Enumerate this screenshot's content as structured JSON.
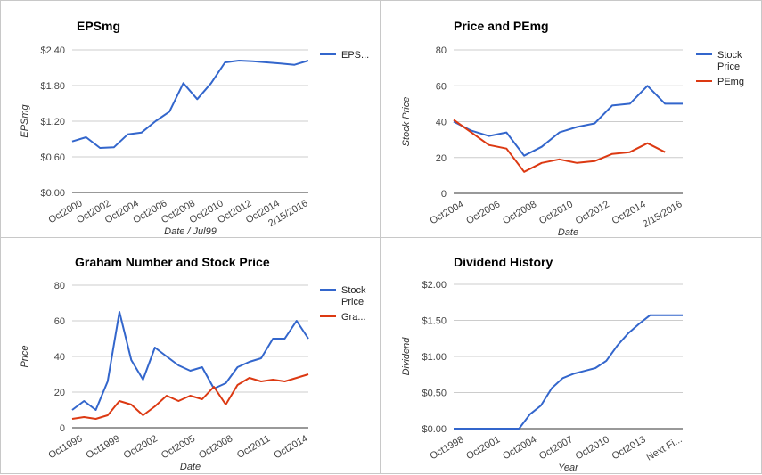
{
  "chart_data": [
    {
      "type": "line",
      "title": "EPSmg",
      "xlabel": "Date / Jul99",
      "ylabel": "EPSmg",
      "yticks": [
        "$0.00",
        "$0.60",
        "$1.20",
        "$1.80",
        "$2.40"
      ],
      "ylim": [
        0,
        2.4
      ],
      "xticks": [
        "Oct2000",
        "Oct2002",
        "Oct2004",
        "Oct2006",
        "Oct2008",
        "Oct2010",
        "Oct2012",
        "Oct2014",
        "2/15/2016"
      ],
      "legend": "right",
      "series": [
        {
          "name": "EPS...",
          "color": "#3366cc",
          "x": [
            0,
            1,
            2,
            3,
            4,
            5,
            6,
            7,
            8,
            9,
            10,
            11,
            12,
            13,
            14,
            15,
            16,
            17
          ],
          "values": [
            0.86,
            0.93,
            0.75,
            0.76,
            0.98,
            1.01,
            1.2,
            1.36,
            1.84,
            1.57,
            1.84,
            2.19,
            2.22,
            2.21,
            2.19,
            2.17,
            2.15,
            2.22
          ]
        }
      ]
    },
    {
      "type": "line",
      "title": "Price and PEmg",
      "xlabel": "Date",
      "ylabel": "Stock Price",
      "yticks": [
        "0",
        "20",
        "40",
        "60",
        "80"
      ],
      "ylim": [
        0,
        80
      ],
      "xticks": [
        "Oct2004",
        "Oct2006",
        "Oct2008",
        "Oct2010",
        "Oct2012",
        "Oct2014",
        "2/15/2016"
      ],
      "legend": "right",
      "series": [
        {
          "name": "Stock Price",
          "color": "#3366cc",
          "x": [
            0,
            1,
            2,
            3,
            4,
            5,
            6,
            7,
            8,
            9,
            10,
            11,
            12,
            13
          ],
          "values": [
            40,
            35,
            32,
            34,
            21,
            26,
            34,
            37,
            39,
            49,
            50,
            60,
            50,
            50
          ]
        },
        {
          "name": "PEmg",
          "color": "#dc3912",
          "x": [
            0,
            1,
            2,
            3,
            4,
            5,
            6,
            7,
            8,
            9,
            10,
            11,
            12
          ],
          "values": [
            41,
            34,
            27,
            25,
            12,
            17,
            19,
            17,
            18,
            22,
            23,
            28,
            23
          ]
        }
      ]
    },
    {
      "type": "line",
      "title": "Graham Number and Stock Price",
      "xlabel": "Date",
      "ylabel": "Price",
      "yticks": [
        "0",
        "20",
        "40",
        "60",
        "80"
      ],
      "ylim": [
        0,
        80
      ],
      "xticks": [
        "Oct1996",
        "Oct1999",
        "Oct2002",
        "Oct2005",
        "Oct2008",
        "Oct2011",
        "Oct2014"
      ],
      "legend": "right",
      "series": [
        {
          "name": "Stock Price",
          "color": "#3366cc",
          "x": [
            0,
            1,
            2,
            3,
            4,
            5,
            6,
            7,
            8,
            9,
            10,
            11,
            12,
            13,
            14,
            15,
            16,
            17,
            18,
            19,
            20
          ],
          "values": [
            10,
            15,
            10,
            26,
            65,
            38,
            27,
            45,
            40,
            35,
            32,
            34,
            22,
            25,
            34,
            37,
            39,
            50,
            50,
            60,
            50
          ]
        },
        {
          "name": "Gra...",
          "color": "#dc3912",
          "x": [
            0,
            1,
            2,
            3,
            4,
            5,
            6,
            7,
            8,
            9,
            10,
            11,
            12,
            13,
            14,
            15,
            16,
            17,
            18,
            19,
            20
          ],
          "values": [
            5,
            6,
            5,
            7,
            15,
            13,
            7,
            12,
            18,
            15,
            18,
            16,
            23,
            13,
            24,
            28,
            26,
            27,
            26,
            28,
            30
          ]
        }
      ]
    },
    {
      "type": "line",
      "title": "Dividend History",
      "xlabel": "Year",
      "ylabel": "Dividend",
      "yticks": [
        "$0.00",
        "$0.50",
        "$1.00",
        "$1.50",
        "$2.00"
      ],
      "ylim": [
        0,
        2
      ],
      "xticks": [
        "Oct1998",
        "Oct2001",
        "Oct2004",
        "Oct2007",
        "Oct2010",
        "Oct2013",
        "Next Fi..."
      ],
      "legend": "none",
      "series": [
        {
          "name": "",
          "color": "#3366cc",
          "x": [
            0,
            1,
            2,
            3,
            4,
            5,
            6,
            7,
            8,
            9,
            10,
            11,
            12,
            13,
            14,
            15,
            16,
            17,
            18,
            19,
            20,
            21
          ],
          "values": [
            0,
            0,
            0,
            0,
            0,
            0,
            0,
            0.2,
            0.32,
            0.56,
            0.7,
            0.76,
            0.8,
            0.84,
            0.94,
            1.15,
            1.32,
            1.45,
            1.57,
            1.57,
            1.57,
            1.57
          ]
        }
      ]
    }
  ]
}
